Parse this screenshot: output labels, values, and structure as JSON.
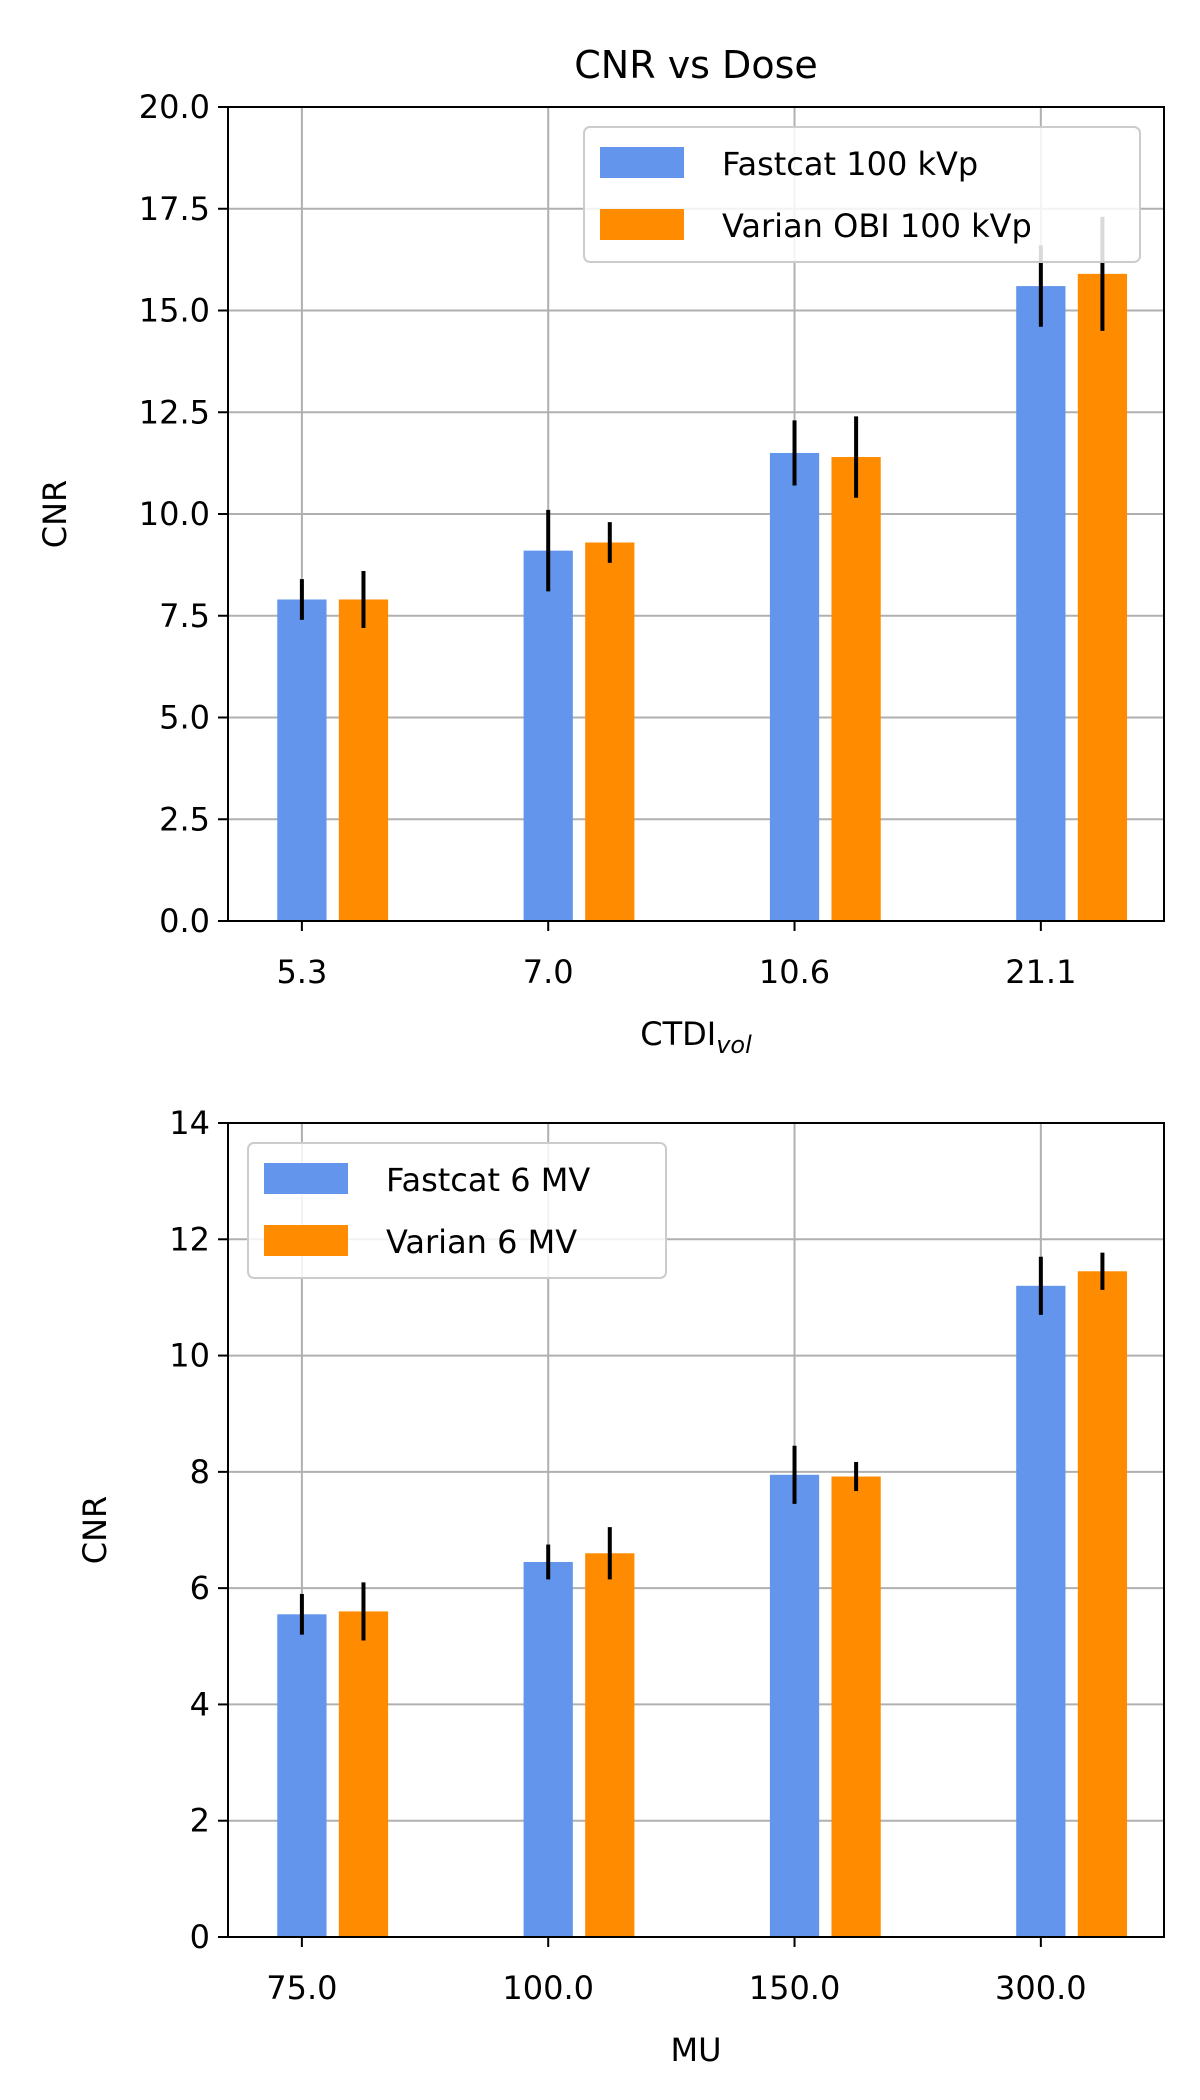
{
  "chart_data": [
    {
      "type": "bar",
      "title": "CNR vs Dose",
      "xlabel": "CTDI",
      "xlabel_subscript": "vol",
      "ylabel": "CNR",
      "categories": [
        "5.3",
        "7.0",
        "10.6",
        "21.1"
      ],
      "ylim": [
        0,
        20
      ],
      "yticks": [
        "0.0",
        "2.5",
        "5.0",
        "7.5",
        "10.0",
        "12.5",
        "15.0",
        "17.5",
        "20.0"
      ],
      "grid": true,
      "legend_position": "upper right",
      "series": [
        {
          "name": "Fastcat 100 kVp",
          "color": "#6495ED",
          "values": [
            7.9,
            9.1,
            11.5,
            15.6
          ],
          "errors": [
            0.5,
            1.0,
            0.8,
            1.0
          ]
        },
        {
          "name": "Varian OBI 100 kVp",
          "color": "#FF8C00",
          "values": [
            7.9,
            9.3,
            11.4,
            15.9
          ],
          "errors": [
            0.7,
            0.5,
            1.0,
            1.4
          ]
        }
      ]
    },
    {
      "type": "bar",
      "title": "",
      "xlabel": "MU",
      "xlabel_subscript": "",
      "ylabel": "CNR",
      "categories": [
        "75.0",
        "100.0",
        "150.0",
        "300.0"
      ],
      "ylim": [
        0,
        14
      ],
      "yticks": [
        "0",
        "2",
        "4",
        "6",
        "8",
        "10",
        "12",
        "14"
      ],
      "grid": true,
      "legend_position": "upper left",
      "series": [
        {
          "name": "Fastcat 6 MV",
          "color": "#6495ED",
          "values": [
            5.55,
            6.45,
            7.95,
            11.2
          ],
          "errors": [
            0.35,
            0.3,
            0.5,
            0.5
          ]
        },
        {
          "name": "Varian 6 MV",
          "color": "#FF8C00",
          "values": [
            5.6,
            6.6,
            7.92,
            11.45
          ],
          "errors": [
            0.5,
            0.45,
            0.25,
            0.32
          ]
        }
      ]
    }
  ]
}
